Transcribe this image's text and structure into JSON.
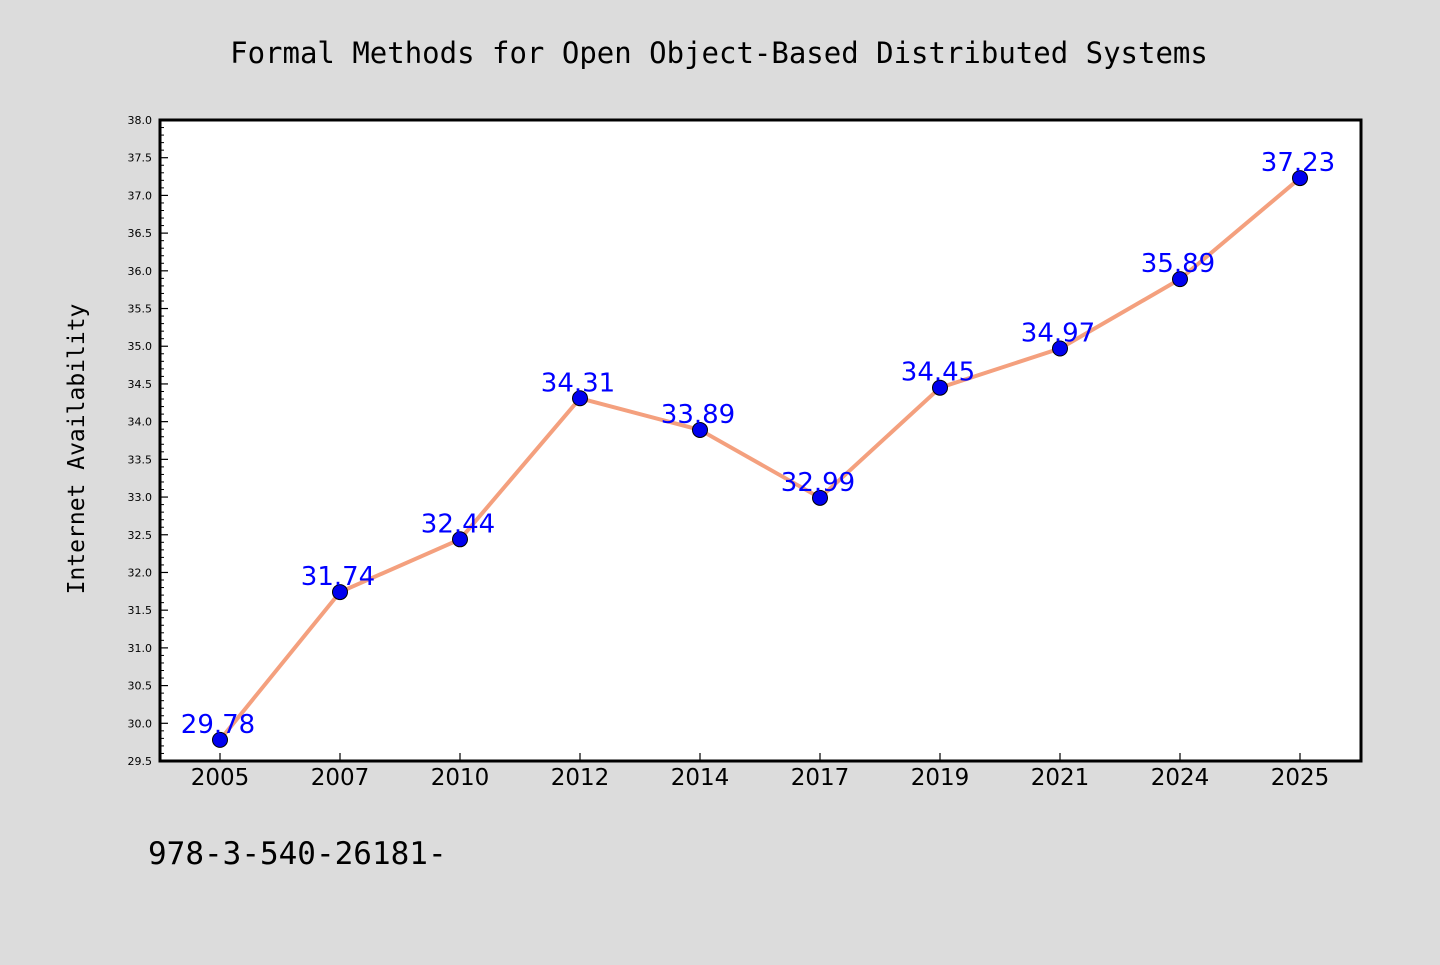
{
  "footer_text": "978-3-540-26181-",
  "colors": {
    "background": "#dcdcdc",
    "plot_background": "#ffffff",
    "line": "#f4a07e",
    "marker": "#0000ee",
    "data_label": "#0000ff",
    "axis": "#000000"
  },
  "chart_data": {
    "type": "line",
    "title": "Formal Methods for Open Object-Based Distributed Systems",
    "xlabel": "",
    "ylabel": "Internet Availability",
    "categories": [
      "2005",
      "2007",
      "2010",
      "2012",
      "2014",
      "2017",
      "2019",
      "2021",
      "2024",
      "2025"
    ],
    "series": [
      {
        "values": [
          29.78,
          31.74,
          32.44,
          34.31,
          33.89,
          32.99,
          34.45,
          34.97,
          35.89,
          37.23
        ]
      }
    ],
    "data_labels": [
      "29.78",
      "31.74",
      "32.44",
      "34.31",
      "33.89",
      "32.99",
      "34.45",
      "34.97",
      "35.89",
      "37.23"
    ],
    "ylim": [
      29.5,
      38.0
    ],
    "yticks": [
      "29.5",
      "30.0",
      "30.5",
      "31.0",
      "31.5",
      "32.0",
      "32.5",
      "33.0",
      "33.5",
      "34.0",
      "34.5",
      "35.0",
      "35.5",
      "36.0",
      "36.5",
      "37.0",
      "37.5",
      "38.0"
    ],
    "grid": false,
    "legend": "none"
  }
}
